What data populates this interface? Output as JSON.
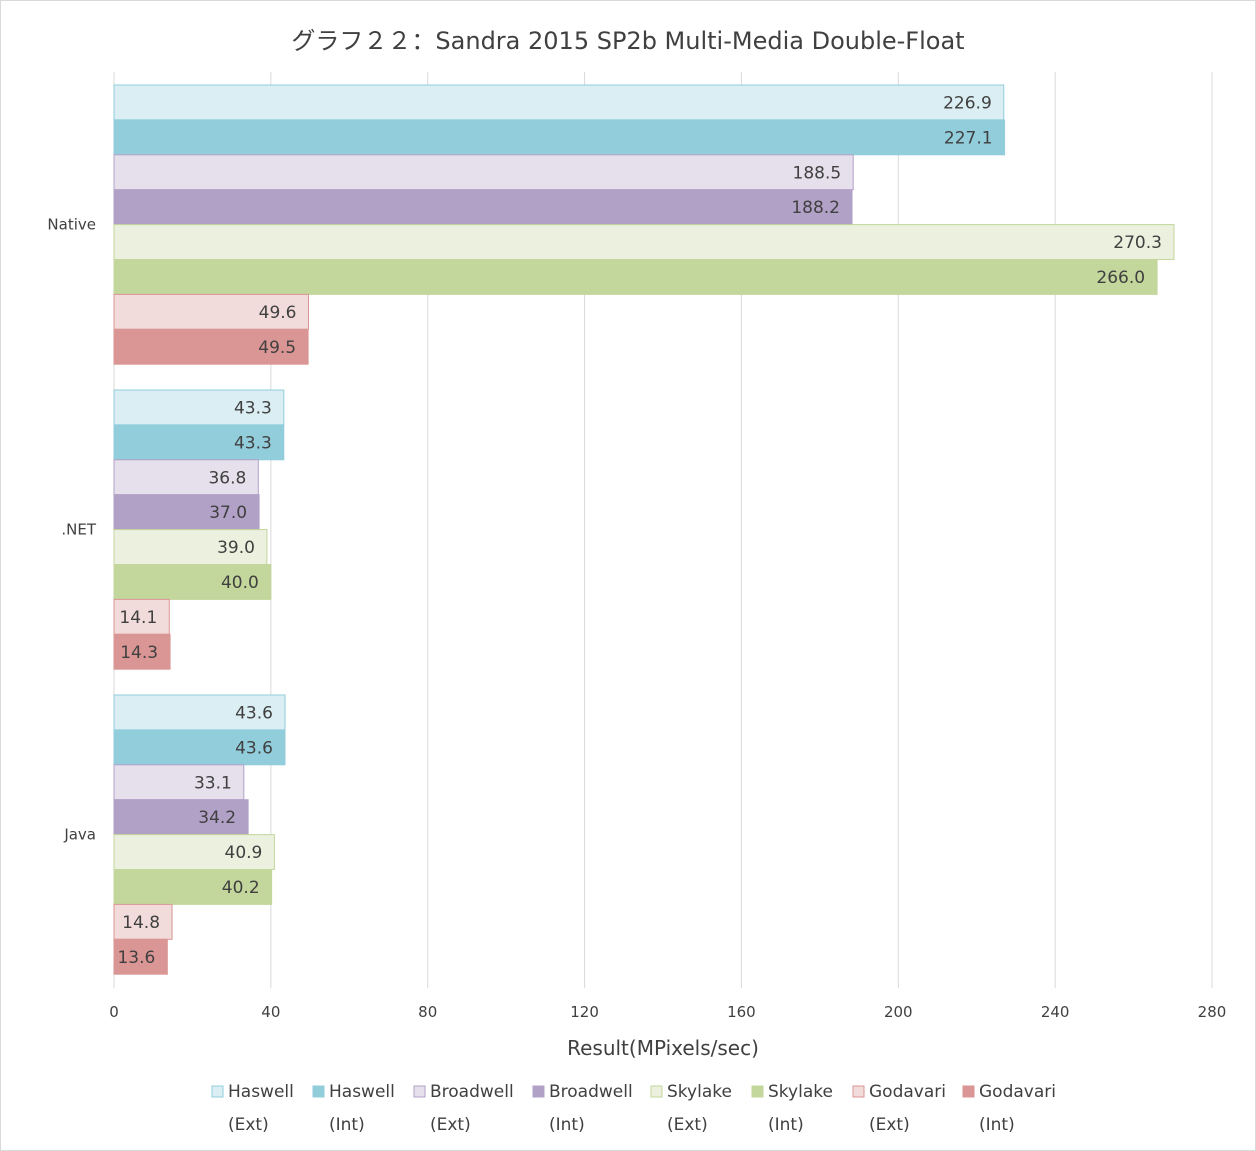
{
  "chart_data": {
    "type": "bar",
    "orientation": "horizontal",
    "title": "グラフ２２：Sandra 2015 SP2b Multi-Media Double-Float",
    "xlabel": "Result(MPixels/sec)",
    "ylabel": "",
    "xlim": [
      0,
      280
    ],
    "xticks": [
      0,
      40,
      80,
      120,
      160,
      200,
      240,
      280
    ],
    "grid": "vertical",
    "legend_position": "bottom",
    "categories": [
      "Native",
      ".NET",
      "Java"
    ],
    "series": [
      {
        "name": "Haswell (Ext)",
        "legend_line1": "Haswell",
        "legend_line2": "(Ext)",
        "color": "#daeef3",
        "border": "#92cddc",
        "values": [
          226.9,
          43.3,
          43.6
        ],
        "labels": [
          "226.9",
          "43.3",
          "43.6"
        ]
      },
      {
        "name": "Haswell (Int)",
        "legend_line1": "Haswell",
        "legend_line2": "(Int)",
        "color": "#92cddc",
        "border": "#92cddc",
        "values": [
          227.1,
          43.3,
          43.6
        ],
        "labels": [
          "227.1",
          "43.3",
          "43.6"
        ]
      },
      {
        "name": "Broadwell (Ext)",
        "legend_line1": "Broadwell",
        "legend_line2": "(Ext)",
        "color": "#e5e0ec",
        "border": "#b2a1c7",
        "values": [
          188.5,
          36.8,
          33.1
        ],
        "labels": [
          "188.5",
          "36.8",
          "33.1"
        ]
      },
      {
        "name": "Broadwell (Int)",
        "legend_line1": "Broadwell",
        "legend_line2": "(Int)",
        "color": "#b2a1c7",
        "border": "#b2a1c7",
        "values": [
          188.2,
          37.0,
          34.2
        ],
        "labels": [
          "188.2",
          "37.0",
          "34.2"
        ]
      },
      {
        "name": "Skylake (Ext)",
        "legend_line1": "Skylake",
        "legend_line2": "(Ext)",
        "color": "#ebf1de",
        "border": "#c3d69b",
        "values": [
          270.3,
          39.0,
          40.9
        ],
        "labels": [
          "270.3",
          "39.0",
          "40.9"
        ]
      },
      {
        "name": "Skylake (Int)",
        "legend_line1": "Skylake",
        "legend_line2": "(Int)",
        "color": "#c3d69b",
        "border": "#c3d69b",
        "values": [
          266.0,
          40.0,
          40.2
        ],
        "labels": [
          "266.0",
          "40.0",
          "40.2"
        ]
      },
      {
        "name": "Godavari (Ext)",
        "legend_line1": "Godavari",
        "legend_line2": "(Ext)",
        "color": "#f2dcdb",
        "border": "#d99694",
        "values": [
          49.6,
          14.1,
          14.8
        ],
        "labels": [
          "49.6",
          "14.1",
          "14.8"
        ]
      },
      {
        "name": "Godavari (Int)",
        "legend_line1": "Godavari",
        "legend_line2": "(Int)",
        "color": "#d99694",
        "border": "#d99694",
        "values": [
          49.5,
          14.3,
          13.6
        ],
        "labels": [
          "49.5",
          "14.3",
          "13.6"
        ]
      }
    ]
  }
}
